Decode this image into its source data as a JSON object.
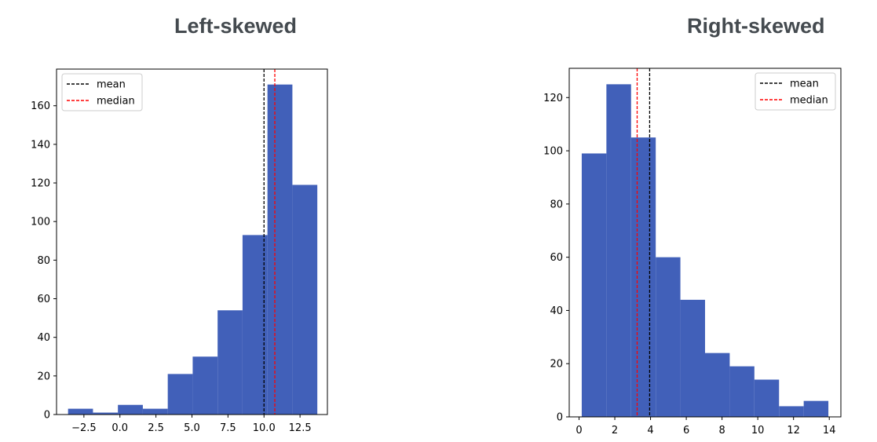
{
  "chart_data": [
    {
      "type": "bar",
      "title": "Left-skewed",
      "xlabel": "",
      "ylabel": "",
      "bin_edges": [
        -3.6,
        -1.87,
        -0.14,
        1.59,
        3.32,
        5.05,
        6.78,
        8.51,
        10.24,
        11.97,
        13.7
      ],
      "values": [
        3,
        1,
        5,
        3,
        21,
        30,
        54,
        93,
        171,
        119
      ],
      "xlim": [
        -4.4,
        14.4
      ],
      "ylim": [
        0,
        179
      ],
      "xticks": [
        -2.5,
        0.0,
        2.5,
        5.0,
        7.5,
        10.0,
        12.5
      ],
      "xtick_labels": [
        "−2.5",
        "0.0",
        "2.5",
        "5.0",
        "7.5",
        "10.0",
        "12.5"
      ],
      "yticks": [
        0,
        20,
        40,
        60,
        80,
        100,
        120,
        140,
        160
      ],
      "ytick_labels": [
        "0",
        "20",
        "40",
        "60",
        "80",
        "100",
        "120",
        "140",
        "160"
      ],
      "mean": 10.0,
      "median": 10.75,
      "legend": {
        "position": "upper-left",
        "entries": [
          {
            "label": "mean",
            "color": "#000000"
          },
          {
            "label": "median",
            "color": "#ff0000"
          }
        ]
      },
      "bar_color": "#4160b9",
      "grid": false
    },
    {
      "type": "bar",
      "title": "Right-skewed",
      "xlabel": "",
      "ylabel": "",
      "bin_edges": [
        0.15,
        1.53,
        2.91,
        4.29,
        5.67,
        7.05,
        8.43,
        9.81,
        11.19,
        12.57,
        13.95
      ],
      "values": [
        99,
        125,
        105,
        60,
        44,
        24,
        19,
        14,
        4,
        6
      ],
      "xlim": [
        -0.55,
        14.65
      ],
      "ylim": [
        0,
        131
      ],
      "xticks": [
        0,
        2,
        4,
        6,
        8,
        10,
        12,
        14
      ],
      "xtick_labels": [
        "0",
        "2",
        "4",
        "6",
        "8",
        "10",
        "12",
        "14"
      ],
      "yticks": [
        0,
        20,
        40,
        60,
        80,
        100,
        120
      ],
      "ytick_labels": [
        "0",
        "20",
        "40",
        "60",
        "80",
        "100",
        "120"
      ],
      "mean": 3.95,
      "median": 3.25,
      "legend": {
        "position": "upper-right",
        "entries": [
          {
            "label": "mean",
            "color": "#000000"
          },
          {
            "label": "median",
            "color": "#ff0000"
          }
        ]
      },
      "bar_color": "#4160b9",
      "grid": false
    }
  ]
}
